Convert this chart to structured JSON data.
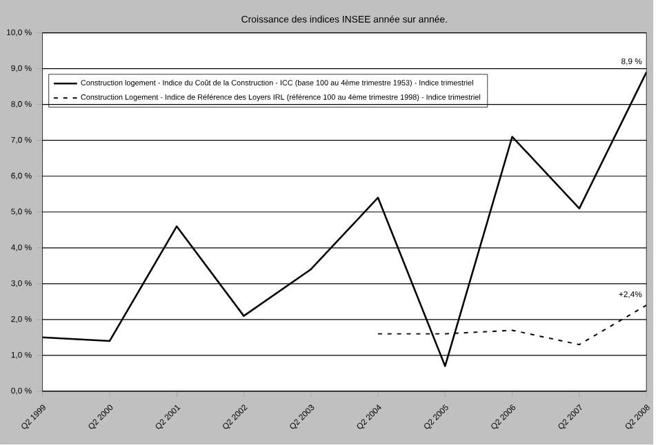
{
  "chart_data": {
    "type": "line",
    "title": "Croissance des indices INSEE année sur année.",
    "categories": [
      "Q2 1999",
      "Q2 2000",
      "Q2 2001",
      "Q2 2002",
      "Q2 2003",
      "Q2 2004",
      "Q2 2005",
      "Q2 2006",
      "Q2 2007",
      "Q2 2008"
    ],
    "series": [
      {
        "name": "Construction logement - Indice du Coût de la Construction - ICC (base 100 au 4ème trimestre 1953) - Indice trimestriel",
        "color": "#000000",
        "line_style": "solid",
        "values": [
          1.5,
          1.4,
          4.6,
          2.1,
          3.4,
          5.4,
          0.7,
          7.1,
          5.1,
          8.9
        ]
      },
      {
        "name": "Construction Logement - Indice de Référence des Loyers IRL (référence 100 au 4ème trimestre 1998) - Indice trimestriel",
        "color": "#000000",
        "line_style": "dashed",
        "values": [
          null,
          null,
          null,
          null,
          null,
          1.6,
          1.6,
          1.7,
          1.3,
          2.4
        ]
      }
    ],
    "ylim": [
      0,
      10
    ],
    "yticks": [
      {
        "value": 0,
        "label": "0,0 %"
      },
      {
        "value": 1,
        "label": "1,0 %"
      },
      {
        "value": 2,
        "label": "2,0 %"
      },
      {
        "value": 3,
        "label": "3,0 %"
      },
      {
        "value": 4,
        "label": "4,0 %"
      },
      {
        "value": 5,
        "label": "5,0 %"
      },
      {
        "value": 6,
        "label": "6,0 %"
      },
      {
        "value": 7,
        "label": "7,0 %"
      },
      {
        "value": 8,
        "label": "8,0 %"
      },
      {
        "value": 9,
        "label": "9,0 %"
      },
      {
        "value": 10,
        "label": "10,0 %"
      }
    ],
    "grid": "y",
    "legend": "top left",
    "annotations": [
      {
        "text": "8,9 %",
        "x": "Q2 2008",
        "y": 8.9
      },
      {
        "text": "+2,4%",
        "x": "Q2 2008",
        "y": 2.4
      }
    ]
  }
}
